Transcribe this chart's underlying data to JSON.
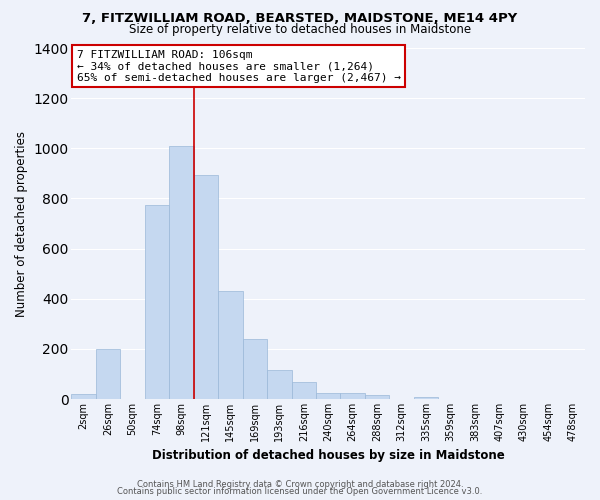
{
  "title": "7, FITZWILLIAM ROAD, BEARSTED, MAIDSTONE, ME14 4PY",
  "subtitle": "Size of property relative to detached houses in Maidstone",
  "xlabel": "Distribution of detached houses by size in Maidstone",
  "ylabel": "Number of detached properties",
  "bar_color": "#c5d8f0",
  "bar_edge_color": "#9ab8d8",
  "tick_labels": [
    "2sqm",
    "26sqm",
    "50sqm",
    "74sqm",
    "98sqm",
    "121sqm",
    "145sqm",
    "169sqm",
    "193sqm",
    "216sqm",
    "240sqm",
    "264sqm",
    "288sqm",
    "312sqm",
    "335sqm",
    "359sqm",
    "383sqm",
    "407sqm",
    "430sqm",
    "454sqm",
    "478sqm"
  ],
  "bar_heights": [
    20,
    200,
    0,
    775,
    1010,
    895,
    430,
    240,
    115,
    70,
    25,
    25,
    15,
    0,
    10,
    0,
    0,
    0,
    0,
    0,
    0
  ],
  "ylim": [
    0,
    1400
  ],
  "yticks": [
    0,
    200,
    400,
    600,
    800,
    1000,
    1200,
    1400
  ],
  "vline_bar_index": 4,
  "property_line_label": "7 FITZWILLIAM ROAD: 106sqm",
  "annotation_line1": "← 34% of detached houses are smaller (1,264)",
  "annotation_line2": "65% of semi-detached houses are larger (2,467) →",
  "vline_color": "#cc0000",
  "box_facecolor": "#ffffff",
  "box_edgecolor": "#cc0000",
  "footer1": "Contains HM Land Registry data © Crown copyright and database right 2024.",
  "footer2": "Contains public sector information licensed under the Open Government Licence v3.0.",
  "background_color": "#eef2fa",
  "plot_bg_color": "#eef2fa",
  "grid_color": "#ffffff",
  "title_fontsize": 9.5,
  "subtitle_fontsize": 8.5,
  "ylabel_fontsize": 8.5,
  "xlabel_fontsize": 8.5,
  "tick_fontsize": 7,
  "footer_fontsize": 6,
  "annot_fontsize": 8
}
